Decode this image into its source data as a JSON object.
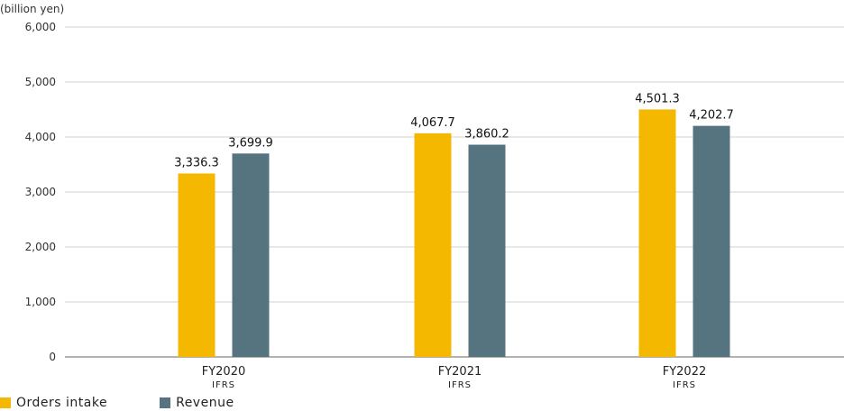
{
  "colors": {
    "orders": "#F5B800",
    "revenue": "#557480",
    "grid": "#d0d0d0",
    "axis": "#666666"
  },
  "chart_data": {
    "type": "bar",
    "unit_label": "(billion yen)",
    "categories": [
      "FY2020",
      "FY2021",
      "FY2022"
    ],
    "category_sublabels": [
      "IFRS",
      "IFRS",
      "IFRS"
    ],
    "series": [
      {
        "name": "Orders intake",
        "values": [
          3336.3,
          4067.7,
          4501.3
        ],
        "labels": [
          "3,336.3",
          "4,067.7",
          "4,501.3"
        ]
      },
      {
        "name": "Revenue",
        "values": [
          3699.9,
          3860.2,
          4202.7
        ],
        "labels": [
          "3,699.9",
          "3,860.2",
          "4,202.7"
        ]
      }
    ],
    "ylim": [
      0,
      6000
    ],
    "yticks": [
      0,
      1000,
      2000,
      3000,
      4000,
      5000,
      6000
    ],
    "ytick_labels": [
      "0",
      "1,000",
      "2,000",
      "3,000",
      "4,000",
      "5,000",
      "6,000"
    ],
    "grid": true,
    "legend_position": "bottom-left"
  }
}
